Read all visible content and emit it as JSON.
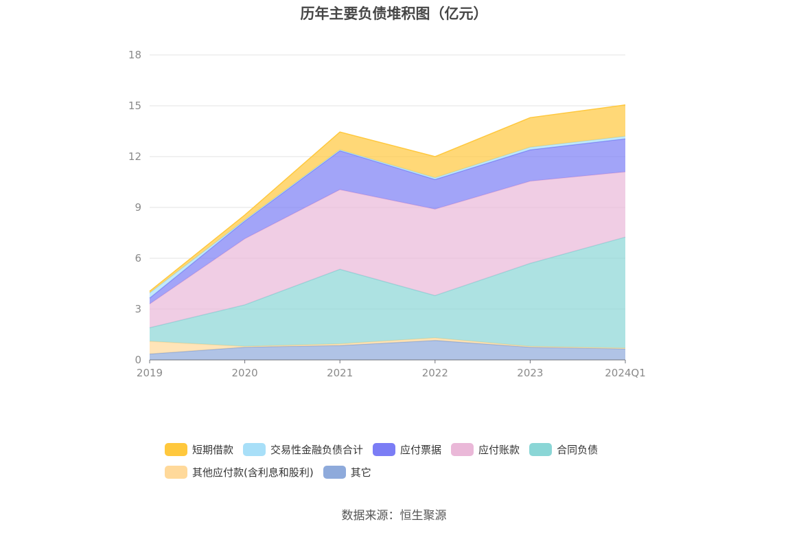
{
  "chart_data": {
    "type": "area",
    "title": "历年主要负债堆积图（亿元）",
    "categories": [
      "2019",
      "2020",
      "2021",
      "2022",
      "2023",
      "2024Q1"
    ],
    "ylim": [
      0,
      18
    ],
    "yticks": [
      0,
      3,
      6,
      9,
      12,
      15,
      18
    ],
    "grid": true,
    "stacked": true,
    "legend_position": "bottom",
    "series": [
      {
        "name": "其它",
        "color": "#8eaadb",
        "values": [
          0.35,
          0.75,
          0.85,
          1.15,
          0.75,
          0.65
        ]
      },
      {
        "name": "其他应付款(含利息和股利)",
        "color": "#ffd99a",
        "values": [
          0.75,
          0.05,
          0.1,
          0.15,
          0.05,
          0.05
        ]
      },
      {
        "name": "合同负债",
        "color": "#8ad6d6",
        "values": [
          0.8,
          2.45,
          4.4,
          2.5,
          4.9,
          6.55
        ]
      },
      {
        "name": "应付账款",
        "color": "#eab8d8",
        "values": [
          1.4,
          3.9,
          4.7,
          5.1,
          4.85,
          3.85
        ]
      },
      {
        "name": "应付票据",
        "color": "#7b7df5",
        "values": [
          0.35,
          1.05,
          2.3,
          1.75,
          1.85,
          1.95
        ]
      },
      {
        "name": "交易性金融负债合计",
        "color": "#a8dff8",
        "values": [
          0.3,
          0.05,
          0.05,
          0.1,
          0.15,
          0.15
        ]
      },
      {
        "name": "短期借款",
        "color": "#ffc83d",
        "values": [
          0.1,
          0.3,
          1.05,
          1.25,
          1.75,
          1.85
        ]
      }
    ]
  },
  "legend_rows": [
    [
      "短期借款",
      "交易性金融负债合计",
      "应付票据",
      "应付账款",
      "合同负债"
    ],
    [
      "其他应付款(含利息和股利)",
      "其它"
    ]
  ],
  "source_text": "数据来源：恒生聚源"
}
